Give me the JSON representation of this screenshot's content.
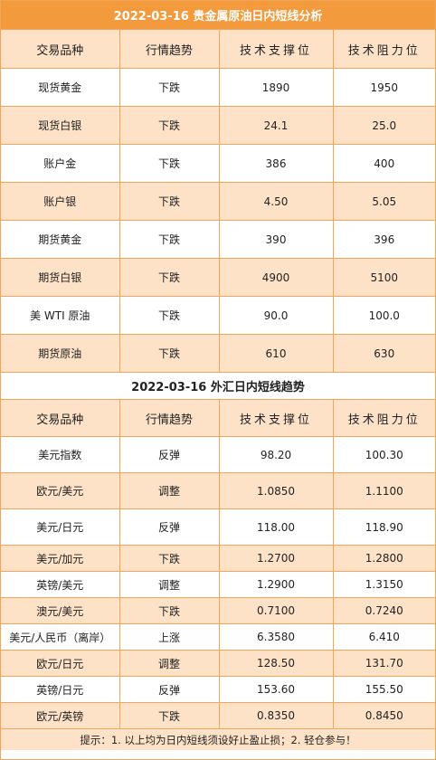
{
  "precious": {
    "title": "2022-03-16 贵金属原油日内短线分析",
    "headers": [
      "交易品种",
      "行情趋势",
      "技术支撑位",
      "技术阻力位"
    ],
    "rows": [
      {
        "name": "现货黄金",
        "trend": "下跌",
        "support": "1890",
        "resistance": "1950"
      },
      {
        "name": "现货白银",
        "trend": "下跌",
        "support": "24.1",
        "resistance": "25.0"
      },
      {
        "name": "账户金",
        "trend": "下跌",
        "support": "386",
        "resistance": "400"
      },
      {
        "name": "账户银",
        "trend": "下跌",
        "support": "4.50",
        "resistance": "5.05"
      },
      {
        "name": "期货黄金",
        "trend": "下跌",
        "support": "390",
        "resistance": "396"
      },
      {
        "name": "期货白银",
        "trend": "下跌",
        "support": "4900",
        "resistance": "5100"
      },
      {
        "name": "美 WTI 原油",
        "trend": "下跌",
        "support": "90.0",
        "resistance": "100.0"
      },
      {
        "name": "期货原油",
        "trend": "下跌",
        "support": "610",
        "resistance": "630"
      }
    ]
  },
  "forex": {
    "title": "2022-03-16 外汇日内短线趋势",
    "headers": [
      "交易品种",
      "行情趋势",
      "技术支撑位",
      "技术阻力位"
    ],
    "rows": [
      {
        "name": "美元指数",
        "trend": "反弹",
        "support": "98.20",
        "resistance": "100.30"
      },
      {
        "name": "欧元/美元",
        "trend": "调整",
        "support": "1.0850",
        "resistance": "1.1100"
      },
      {
        "name": "美元/日元",
        "trend": "反弹",
        "support": "118.00",
        "resistance": "118.90"
      },
      {
        "name": "美元/加元",
        "trend": "下跌",
        "support": "1.2700",
        "resistance": "1.2800"
      },
      {
        "name": "英镑/美元",
        "trend": "调整",
        "support": "1.2900",
        "resistance": "1.3150"
      },
      {
        "name": "澳元/美元",
        "trend": "下跌",
        "support": "0.7100",
        "resistance": "0.7240"
      },
      {
        "name": "美元/人民币（离岸）",
        "trend": "上涨",
        "support": "6.3580",
        "resistance": "6.410"
      },
      {
        "name": "欧元/日元",
        "trend": "调整",
        "support": "128.50",
        "resistance": "131.70"
      },
      {
        "name": "英镑/日元",
        "trend": "反弹",
        "support": "153.60",
        "resistance": "155.50"
      },
      {
        "name": "欧元/英镑",
        "trend": "下跌",
        "support": "0.8350",
        "resistance": "0.8450"
      }
    ]
  },
  "footer": "提示：1. 以上均为日内短线须设好止盈止损；2. 轻仓参与！"
}
